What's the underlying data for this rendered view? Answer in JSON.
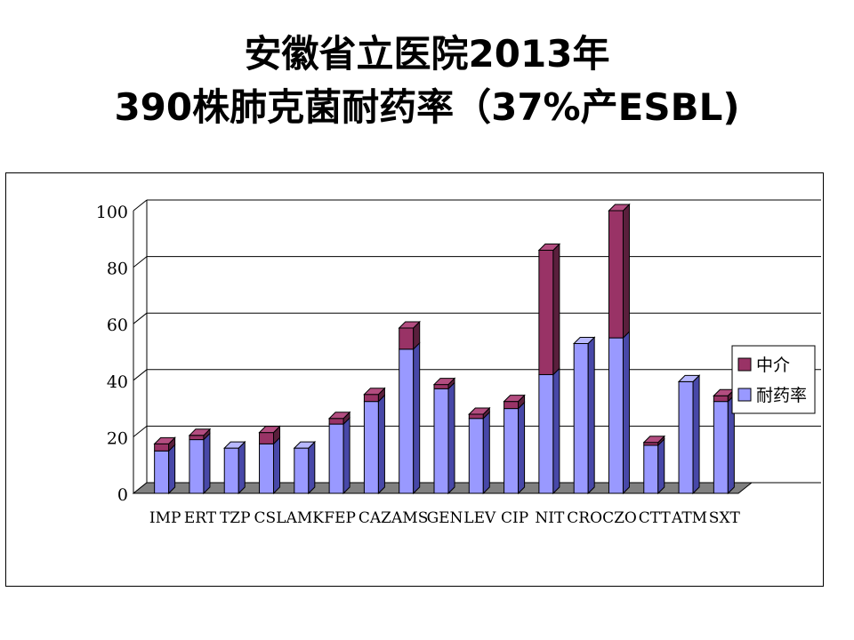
{
  "title_line1": "安徽省立医院2013年",
  "title_line2": "390株肺克菌耐药率（37%产ESBL)",
  "colors": {
    "resistance_front": "#9999ff",
    "resistance_side": "#4848a8",
    "resistance_top": "#b8b8ff",
    "intermediate_front": "#993366",
    "intermediate_side": "#5a1f3c",
    "intermediate_top": "#b34d80",
    "grid": "#000000",
    "floor": "#808080"
  },
  "chart_data": {
    "type": "bar",
    "stacked": true,
    "three_d": true,
    "categories": [
      "IMP",
      "ERT",
      "TZP",
      "CSL",
      "AMK",
      "FEP",
      "CAZ",
      "AMS",
      "GEN",
      "LEV",
      "CIP",
      "NIT",
      "CRO",
      "CZO",
      "CTT",
      "ATM",
      "SXT"
    ],
    "series": [
      {
        "name": "耐药率",
        "values": [
          15,
          19,
          16,
          17.5,
          16,
          24.5,
          32.5,
          51,
          37,
          26.5,
          30,
          42,
          53,
          55,
          17,
          39.5,
          32.5
        ]
      },
      {
        "name": "中介",
        "values": [
          2.5,
          1.5,
          0,
          4,
          0,
          2,
          2.5,
          7.5,
          1.5,
          1.5,
          2.5,
          44,
          0,
          45,
          1,
          0,
          2
        ]
      }
    ],
    "y_ticks": [
      "0",
      "20",
      "40",
      "60",
      "80",
      "100"
    ],
    "ylim": [
      0,
      100
    ],
    "grid": true,
    "legend": {
      "position": "right",
      "entries": [
        "中介",
        "耐药率"
      ]
    }
  }
}
